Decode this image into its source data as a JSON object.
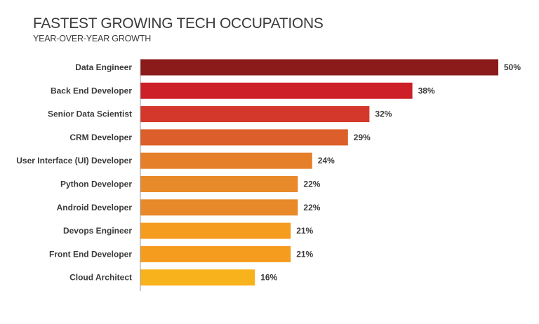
{
  "chart_data": {
    "type": "bar",
    "orientation": "horizontal",
    "title": "FASTEST GROWING TECH OCCUPATIONS",
    "subtitle": "YEAR-OVER-YEAR GROWTH",
    "categories": [
      "Data Engineer",
      "Back End Developer",
      "Senior Data Scientist",
      "CRM Developer",
      "User Interface (UI) Developer",
      "Python Developer",
      "Android Developer",
      "Devops Engineer",
      "Front End Developer",
      "Cloud Architect"
    ],
    "values": [
      50,
      38,
      32,
      29,
      24,
      22,
      22,
      21,
      21,
      16
    ],
    "data_labels": [
      "50%",
      "38%",
      "32%",
      "29%",
      "24%",
      "22%",
      "22%",
      "21%",
      "21%",
      "16%"
    ],
    "colors": [
      "#8b1a1a",
      "#cc1f27",
      "#d4382a",
      "#dc5e2a",
      "#e67f29",
      "#e8892a",
      "#e8892a",
      "#f59c1f",
      "#f59c1f",
      "#f8b21b"
    ],
    "unit": "%",
    "xlim": [
      0,
      50
    ],
    "grid": false,
    "legend": "none"
  }
}
